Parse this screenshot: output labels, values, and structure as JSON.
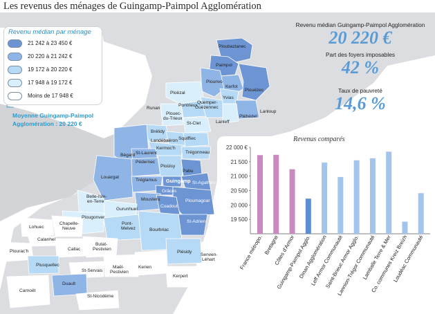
{
  "title": "Les revenus des ménages de Guingamp-Paimpol Agglomération",
  "legend": {
    "title": "Revenu médian par ménage",
    "classes": [
      {
        "label": "21 242 à 23 450 €",
        "color": "#6d95d4"
      },
      {
        "label": "20 220 à 21 242 €",
        "color": "#8fb4e6"
      },
      {
        "label": "19 172 à 20 220 €",
        "color": "#b6daf5"
      },
      {
        "label": "17 948 à 19 172 €",
        "color": "#d9effb"
      },
      {
        "label": "Moins de 17 948 €",
        "color": "#ffffff"
      }
    ],
    "median_line1": "Moyenne Guingamp-Paimpol",
    "median_line2": "Agglomération : 20 220 €"
  },
  "stats": {
    "median_label": "Revenu médian Guingamp-Paimpol Agglomération",
    "median_value": "20 220 €",
    "taxable_label": "Part des foyers imposables",
    "taxable_value": "42 %",
    "poverty_label": "Taux de pauvreté",
    "poverty_value": "14,6 %"
  },
  "map_labels": [
    "Ploubazlanec",
    "Paimpol",
    "Plourivo",
    "Kerfot",
    "Plouézec",
    "Yvias",
    "Lanloup",
    "Pléhédel",
    "Lanleff",
    "Ploëzal",
    "Runan",
    "Pontrieux",
    "Quemper-Guézennec",
    "Plouec-du-Trieux",
    "St-Clet",
    "Brélidy",
    "Landébaëron",
    "Squiffiec",
    "Kermoc'h",
    "Bégard",
    "St-Laurent",
    "Trégonneau",
    "Pédernec",
    "Ploüisy",
    "Pabu",
    "Louargat",
    "Tréglamus",
    "Guingamp",
    "St-Agathon",
    "Grâces",
    "Ploumagoar",
    "Mousteru",
    "Coadout",
    "Belle-Isle-en-Terre",
    "Gurunhuel",
    "Plougonver",
    "Pont-Melvez",
    "St-Adrien",
    "Bourbriac",
    "Lohuec",
    "Chapelle-Neuve",
    "Calanhel",
    "Bulat-Pestivien",
    "Plourac'h",
    "Callac",
    "Plusquellec",
    "St-Servais",
    "Maël-Pestivien",
    "Kerien",
    "Plésidy",
    "Senven-Léhart",
    "Duault",
    "Carnoët",
    "Kerpert",
    "St-Nicodème"
  ],
  "chart_data": {
    "type": "bar",
    "title": "Revenus comparés",
    "categories": [
      "France métropo.",
      "Bretagne",
      "Côtes d'Armor",
      "Guingamp-Paimpol Agglo.",
      "Dinan Agglomération",
      "Leff Armor Communauté",
      "Saint-Brieuc Armor Agglo.",
      "Lannion-Trégor Communauté",
      "Lamballe Terre & Mer",
      "Co. communes Kreiz Breizh",
      "Loudéac Communauté"
    ],
    "values": [
      21730,
      21740,
      21240,
      20220,
      21470,
      20970,
      21550,
      21620,
      21850,
      19420,
      20410
    ],
    "colors": [
      "#c98ac0",
      "#c98ac0",
      "#c98ac0",
      "#5b8fd1",
      "#a3c5ec",
      "#a3c5ec",
      "#a3c5ec",
      "#a3c5ec",
      "#a3c5ec",
      "#a3c5ec",
      "#a3c5ec"
    ],
    "ylim": [
      19000,
      22000
    ],
    "yticks": [
      "19 500",
      "20 000",
      "20 500",
      "21 000",
      "21 500",
      "22 000 €"
    ],
    "ytick_values": [
      19500,
      20000,
      20500,
      21000,
      21500,
      22000
    ]
  }
}
